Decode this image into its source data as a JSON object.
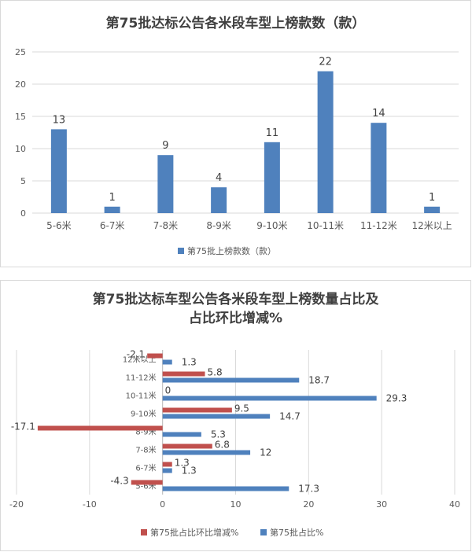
{
  "colors": {
    "bar_blue": "#4F81BD",
    "bar_red": "#C0504D",
    "grid": "#d9d9d9",
    "axis_text": "#595959"
  },
  "chart_data": [
    {
      "type": "bar",
      "title": "第75批达标公告各米段车型上榜款数（款）",
      "categories": [
        "5-6米",
        "6-7米",
        "7-8米",
        "8-9米",
        "9-10米",
        "10-11米",
        "11-12米",
        "12米以上"
      ],
      "series": [
        {
          "name": "第75批上榜款数（款）",
          "values": [
            13,
            1,
            9,
            4,
            11,
            22,
            14,
            1
          ]
        }
      ],
      "ylim": [
        0,
        25
      ],
      "yticks": [
        0,
        5,
        10,
        15,
        20,
        25
      ],
      "grid": true,
      "legend": "bottom"
    },
    {
      "type": "bar",
      "orientation": "horizontal",
      "title_line1": "第75批达标车型公告各米段车型上榜数量占比及",
      "title_line2": "占比环比增减%",
      "categories": [
        "5-6米",
        "6-7米",
        "7-8米",
        "8-9米",
        "9-10米",
        "10-11米",
        "11-12米",
        "12米以上"
      ],
      "series": [
        {
          "name": "第75批占比环比增减%",
          "values": [
            -4.3,
            1.3,
            6.8,
            -17.1,
            9.5,
            0,
            5.8,
            -2.1
          ]
        },
        {
          "name": "第75批占比%",
          "values": [
            17.3,
            1.3,
            12,
            5.3,
            14.7,
            29.3,
            18.7,
            1.3
          ]
        }
      ],
      "xlim": [
        -20,
        40
      ],
      "xticks": [
        -20,
        -10,
        0,
        10,
        20,
        30,
        40
      ],
      "grid": true,
      "legend": "bottom"
    }
  ]
}
